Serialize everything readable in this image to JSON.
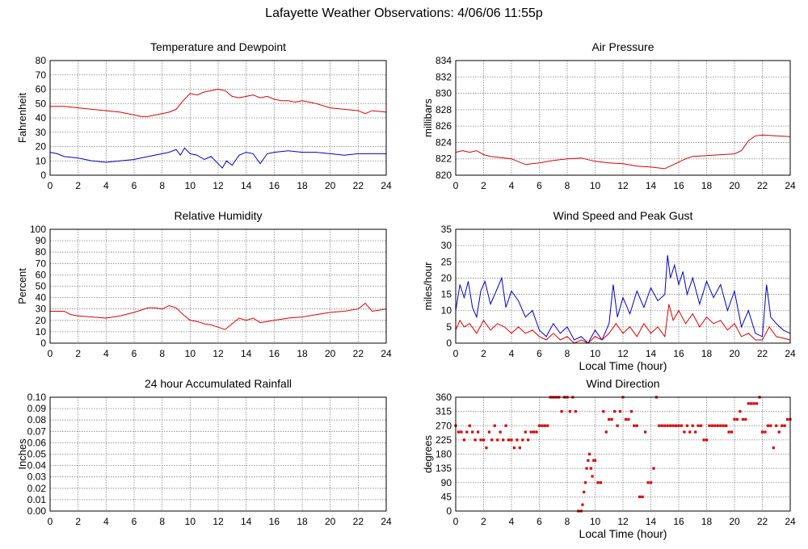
{
  "page": {
    "title": "Lafayette Weather Observations: 4/06/06 11:55p"
  },
  "colors": {
    "red": "#dd0000",
    "blue": "#0000cc",
    "grid": "#808080",
    "axis": "#000000"
  },
  "chart_data": [
    {
      "type": "line",
      "title": "Temperature and Dewpoint",
      "xlabel": "",
      "ylabel": "Fahrenheit",
      "xlim": [
        0,
        24
      ],
      "ylim": [
        0,
        80
      ],
      "xticks": [
        0,
        2,
        4,
        6,
        8,
        10,
        12,
        14,
        16,
        18,
        20,
        22,
        24
      ],
      "yticks": [
        0,
        10,
        20,
        30,
        40,
        50,
        60,
        70,
        80
      ],
      "grid": true,
      "series": [
        {
          "color": "#dd0000",
          "x": [
            0,
            1,
            2,
            3,
            4,
            5,
            6,
            6.5,
            7,
            7.5,
            8,
            8.5,
            9,
            9.5,
            10,
            10.5,
            11,
            11.5,
            12,
            12.5,
            13,
            13.5,
            14,
            14.5,
            15,
            15.5,
            16,
            16.5,
            17,
            17.5,
            18,
            18.5,
            19,
            20,
            21,
            22,
            22.5,
            23,
            24
          ],
          "y": [
            48,
            48,
            47,
            46,
            45,
            44,
            42,
            41,
            41,
            42,
            43,
            44,
            46,
            52,
            57,
            56,
            58,
            59,
            60,
            59,
            55,
            54,
            55,
            56,
            54,
            55,
            53,
            52,
            52,
            51,
            52,
            51,
            50,
            47,
            46,
            45,
            43,
            45,
            44
          ]
        },
        {
          "color": "#0000cc",
          "x": [
            0,
            0.5,
            1,
            2,
            3,
            4,
            5,
            6,
            7,
            8,
            8.5,
            9,
            9.3,
            9.6,
            10,
            10.5,
            11,
            11.5,
            12,
            12.3,
            12.6,
            13,
            13.5,
            14,
            14.5,
            15,
            15.5,
            16,
            17,
            18,
            19,
            20,
            21,
            22,
            23,
            24
          ],
          "y": [
            16,
            15,
            13,
            12,
            10,
            9,
            10,
            11,
            13,
            15,
            16,
            18,
            14,
            19,
            15,
            14,
            11,
            13,
            8,
            5,
            10,
            7,
            14,
            16,
            15,
            8,
            15,
            16,
            17,
            16,
            16,
            15,
            14,
            15,
            15,
            15
          ]
        }
      ]
    },
    {
      "type": "line",
      "title": "Air Pressure",
      "xlabel": "",
      "ylabel": "millibars",
      "xlim": [
        0,
        24
      ],
      "ylim": [
        820,
        834
      ],
      "xticks": [
        0,
        2,
        4,
        6,
        8,
        10,
        12,
        14,
        16,
        18,
        20,
        22,
        24
      ],
      "yticks": [
        820,
        822,
        824,
        826,
        828,
        830,
        832,
        834
      ],
      "grid": true,
      "series": [
        {
          "color": "#dd0000",
          "x": [
            0,
            0.5,
            1,
            1.5,
            2,
            2.5,
            3,
            4,
            5,
            5.5,
            6,
            7,
            8,
            9,
            10,
            11,
            12,
            13,
            14,
            14.5,
            15,
            15.5,
            16,
            16.5,
            17,
            18,
            19,
            20,
            20.5,
            21,
            21.5,
            22,
            23,
            24
          ],
          "y": [
            822.8,
            823.0,
            822.8,
            823.0,
            822.5,
            822.3,
            822.2,
            822.0,
            821.3,
            821.4,
            821.5,
            821.8,
            822.0,
            822.1,
            821.7,
            821.5,
            821.4,
            821.1,
            821.0,
            820.9,
            820.8,
            821.2,
            821.6,
            822.0,
            822.3,
            822.4,
            822.5,
            822.6,
            823.0,
            824.2,
            824.8,
            824.9,
            824.8,
            824.7
          ]
        }
      ]
    },
    {
      "type": "line",
      "title": "Relative Humidity",
      "xlabel": "",
      "ylabel": "Percent",
      "xlim": [
        0,
        24
      ],
      "ylim": [
        0,
        100
      ],
      "xticks": [
        0,
        2,
        4,
        6,
        8,
        10,
        12,
        14,
        16,
        18,
        20,
        22,
        24
      ],
      "yticks": [
        0,
        10,
        20,
        30,
        40,
        50,
        60,
        70,
        80,
        90,
        100
      ],
      "grid": true,
      "series": [
        {
          "color": "#dd0000",
          "x": [
            0,
            1,
            1.5,
            2,
            3,
            4,
            4.5,
            5,
            6,
            6.5,
            7,
            7.5,
            8,
            8.5,
            9,
            9.5,
            10,
            10.5,
            11,
            11.5,
            12,
            12.5,
            13,
            13.5,
            14,
            14.5,
            15,
            15.5,
            16,
            17,
            18,
            19,
            20,
            21,
            22,
            22.5,
            23,
            24
          ],
          "y": [
            28,
            28,
            25,
            24,
            23,
            22,
            23,
            24,
            27,
            29,
            31,
            31,
            30,
            33,
            31,
            25,
            20,
            19,
            17,
            16,
            14,
            12,
            17,
            22,
            20,
            22,
            18,
            19,
            20,
            22,
            23,
            25,
            27,
            28,
            30,
            35,
            28,
            30
          ]
        }
      ]
    },
    {
      "type": "line",
      "title": "Wind Speed and Peak Gust",
      "xlabel": "Local Time (hour)",
      "ylabel": "miles/hour",
      "xlim": [
        0,
        24
      ],
      "ylim": [
        0,
        35
      ],
      "xticks": [
        0,
        2,
        4,
        6,
        8,
        10,
        12,
        14,
        16,
        18,
        20,
        22,
        24
      ],
      "yticks": [
        0,
        5,
        10,
        15,
        20,
        25,
        30,
        35
      ],
      "grid": true,
      "series": [
        {
          "color": "#0000cc",
          "x": [
            0,
            0.3,
            0.6,
            0.9,
            1.2,
            1.5,
            1.8,
            2.1,
            2.5,
            3,
            3.3,
            3.6,
            4,
            4.5,
            5,
            5.5,
            6,
            6.5,
            7,
            7.5,
            8,
            8.5,
            9,
            9.5,
            10,
            10.5,
            11,
            11.3,
            11.6,
            12,
            12.5,
            13,
            13.5,
            14,
            14.5,
            15,
            15.2,
            15.4,
            15.7,
            16,
            16.3,
            16.6,
            17,
            17.5,
            18,
            18.5,
            19,
            19.5,
            20,
            20.5,
            21,
            21.5,
            22,
            22.3,
            22.6,
            23,
            23.5,
            24
          ],
          "y": [
            10,
            18,
            14,
            19,
            11,
            8,
            16,
            19,
            12,
            17,
            20,
            11,
            16,
            13,
            8,
            10,
            4,
            2,
            6,
            3,
            5,
            1,
            2,
            0,
            4,
            1,
            6,
            18,
            8,
            14,
            9,
            16,
            11,
            17,
            13,
            15,
            27,
            20,
            24,
            18,
            22,
            15,
            20,
            12,
            19,
            14,
            18,
            10,
            16,
            5,
            10,
            3,
            2,
            18,
            8,
            6,
            4,
            3
          ]
        },
        {
          "color": "#dd0000",
          "x": [
            0,
            0.3,
            0.6,
            1,
            1.5,
            2,
            2.5,
            3,
            3.5,
            4,
            4.5,
            5,
            5.5,
            6,
            6.5,
            7,
            7.5,
            8,
            8.5,
            9,
            9.5,
            10,
            10.5,
            11,
            11.5,
            12,
            12.5,
            13,
            13.5,
            14,
            14.5,
            15,
            15.3,
            15.6,
            16,
            16.5,
            17,
            17.5,
            18,
            18.5,
            19,
            19.5,
            20,
            20.5,
            21,
            21.5,
            22,
            22.5,
            23,
            24
          ],
          "y": [
            4,
            7,
            5,
            6,
            3,
            7,
            4,
            6,
            5,
            3,
            5,
            3,
            4,
            2,
            1,
            3,
            1,
            2,
            0,
            1,
            0,
            2,
            1,
            3,
            6,
            3,
            5,
            2,
            6,
            3,
            5,
            2,
            12,
            7,
            10,
            6,
            9,
            5,
            8,
            6,
            7,
            4,
            6,
            2,
            3,
            1,
            1,
            5,
            2,
            1
          ]
        }
      ]
    },
    {
      "type": "line",
      "title": "24 hour Accumulated Rainfall",
      "xlabel": "",
      "ylabel": "Inches",
      "xlim": [
        0,
        24
      ],
      "ylim": [
        0,
        0.1
      ],
      "xticks": [
        0,
        2,
        4,
        6,
        8,
        10,
        12,
        14,
        16,
        18,
        20,
        22,
        24
      ],
      "yticks": [
        "0.00",
        "0.01",
        "0.02",
        "0.03",
        "0.04",
        "0.05",
        "0.06",
        "0.07",
        "0.08",
        "0.09",
        "0.10"
      ],
      "grid": true,
      "series": [
        {
          "color": "#dd0000",
          "x": [
            0,
            24
          ],
          "y": [
            0,
            0
          ]
        }
      ]
    },
    {
      "type": "scatter",
      "title": "Wind Direction",
      "xlabel": "Local Time (hour)",
      "ylabel": "degrees",
      "xlim": [
        0,
        24
      ],
      "ylim": [
        0,
        360
      ],
      "xticks": [
        0,
        2,
        4,
        6,
        8,
        10,
        12,
        14,
        16,
        18,
        20,
        22,
        24
      ],
      "yticks": [
        0,
        45,
        90,
        135,
        180,
        225,
        270,
        315,
        360
      ],
      "grid": true,
      "series": [
        {
          "color": "#dd0000",
          "x": [
            0,
            0.2,
            0.4,
            0.6,
            0.8,
            1.0,
            1.2,
            1.4,
            1.6,
            1.8,
            2.0,
            2.2,
            2.4,
            2.6,
            2.8,
            3.0,
            3.2,
            3.4,
            3.6,
            3.8,
            4.0,
            4.2,
            4.4,
            4.6,
            4.8,
            5.0,
            5.2,
            5.4,
            5.6,
            5.8,
            6.0,
            6.2,
            6.4,
            6.6,
            6.8,
            7.0,
            7.2,
            7.4,
            7.6,
            7.8,
            8.0,
            8.2,
            8.4,
            8.6,
            8.8,
            9.0,
            9.1,
            9.2,
            9.3,
            9.4,
            9.5,
            9.6,
            9.7,
            9.8,
            9.9,
            10.0,
            10.2,
            10.4,
            10.6,
            10.8,
            11.0,
            11.2,
            11.4,
            11.6,
            11.8,
            12.0,
            12.2,
            12.4,
            12.6,
            12.8,
            13.0,
            13.2,
            13.4,
            13.6,
            13.8,
            14.0,
            14.2,
            14.4,
            14.6,
            14.8,
            15.0,
            15.2,
            15.4,
            15.6,
            15.8,
            16.0,
            16.2,
            16.4,
            16.6,
            16.8,
            17.0,
            17.2,
            17.4,
            17.6,
            17.8,
            18.0,
            18.2,
            18.4,
            18.6,
            18.8,
            19.0,
            19.2,
            19.4,
            19.6,
            19.8,
            20.0,
            20.2,
            20.4,
            20.6,
            20.8,
            21.0,
            21.2,
            21.4,
            21.6,
            21.8,
            22.0,
            22.2,
            22.4,
            22.6,
            22.8,
            23.0,
            23.2,
            23.4,
            23.6,
            23.8,
            24.0
          ],
          "y": [
            270,
            250,
            250,
            225,
            250,
            270,
            250,
            225,
            250,
            225,
            225,
            200,
            250,
            225,
            270,
            225,
            250,
            225,
            270,
            225,
            225,
            200,
            225,
            200,
            225,
            250,
            225,
            250,
            250,
            250,
            270,
            270,
            270,
            270,
            360,
            360,
            360,
            360,
            315,
            360,
            360,
            315,
            360,
            315,
            0,
            0,
            20,
            60,
            90,
            135,
            160,
            180,
            135,
            110,
            160,
            160,
            90,
            90,
            315,
            250,
            290,
            290,
            315,
            270,
            315,
            360,
            290,
            290,
            315,
            270,
            270,
            45,
            45,
            250,
            90,
            90,
            135,
            360,
            270,
            270,
            270,
            270,
            270,
            270,
            270,
            270,
            270,
            250,
            270,
            250,
            270,
            250,
            270,
            270,
            225,
            225,
            270,
            270,
            270,
            270,
            270,
            270,
            270,
            250,
            250,
            290,
            290,
            315,
            290,
            290,
            340,
            340,
            340,
            340,
            360,
            250,
            250,
            270,
            270,
            200,
            270,
            250,
            270,
            270,
            290,
            290
          ]
        }
      ]
    }
  ]
}
